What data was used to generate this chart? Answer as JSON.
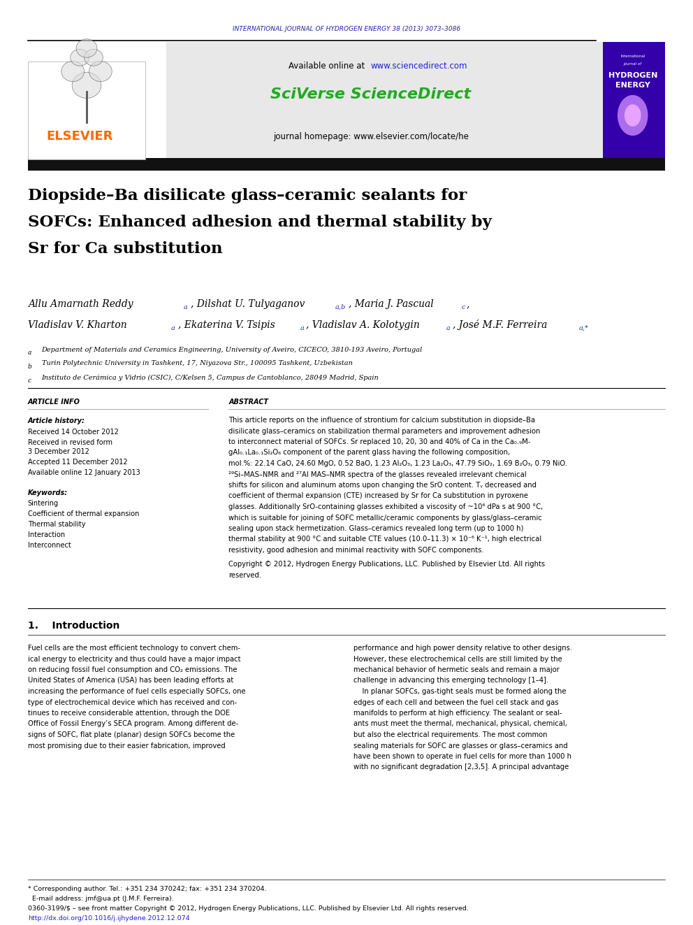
{
  "page_width": 9.92,
  "page_height": 13.23,
  "bg_color": "#ffffff",
  "journal_header": "INTERNATIONAL JOURNAL OF HYDROGEN ENERGY 38 (2013) 3073–3086",
  "journal_header_color": "#2222aa",
  "elsevier_logo_color": "#FF6600",
  "elsevier_text": "ELSEVIER",
  "sciverse_text": "SciVerse ScienceDirect",
  "sciverse_color": "#22aa22",
  "available_online": "Available online at ",
  "website": "www.sciencedirect.com",
  "website_color": "#2222cc",
  "journal_homepage": "journal homepage: www.elsevier.com/locate/he",
  "header_box_bg": "#e8e8e8",
  "title_bar_color": "#111111",
  "paper_title_line1": "Diopside–Ba disilicate glass–ceramic sealants for",
  "paper_title_line2": "SOFCs: Enhanced adhesion and thermal stability by",
  "paper_title_line3": "Sr for Ca substitution",
  "title_color": "#000000",
  "authors_line1": "Allu Amarnath Reddy ",
  "authors_line1b": "a",
  "authors_line1c": ", Dilshat U. Tulyaganov ",
  "authors_line1d": "a,b",
  "authors_line1e": ", Maria J. Pascual ",
  "authors_line1f": "c",
  "authors_line1g": ",",
  "authors_line2": "Vladislav V. Kharton ",
  "authors_line2b": "a",
  "authors_line2c": ", Ekaterina V. Tsipis ",
  "authors_line2d": "a",
  "authors_line2e": ", Vladislav A. Kolotygin ",
  "authors_line2f": "a",
  "authors_line2g": ", José M.F. Ferreira ",
  "authors_line2h": "a,*",
  "affil_a": "ᵃ Department of Materials and Ceramics Engineering, University of Aveiro, CICECO, 3810-193 Aveiro, Portugal",
  "affil_b": "ᵇ Turin Polytechnic University in Tashkent, 17, Niyazova Str., 100095 Tashkent, Uzbekistan",
  "affil_c": "ᶜ Instituto de Cerámica y Vidrio (CSIC), C/Kelsen 5, Campus de Cantoblanco, 28049 Madrid, Spain",
  "article_info_title": "ARTICLE INFO",
  "article_history_title": "Article history:",
  "received1": "Received 14 October 2012",
  "received2": "Received in revised form",
  "received2b": "3 December 2012",
  "accepted": "Accepted 11 December 2012",
  "available": "Available online 12 January 2013",
  "keywords_title": "Keywords:",
  "kw1": "Sintering",
  "kw2": "Coefficient of thermal expansion",
  "kw3": "Thermal stability",
  "kw4": "Interaction",
  "kw5": "Interconnect",
  "abstract_title": "ABSTRACT",
  "abstract_text": "This article reports on the influence of strontium for calcium substitution in diopside–Ba\ndisilicate glass–ceramics on stabilization thermal parameters and improvement adhesion\nto interconnect material of SOFCs. Sr replaced 10, 20, 30 and 40% of Ca in the Ca₀.₉M‐\ngAl₀.₁La₀.₁Si₂O₆ component of the parent glass having the following composition,\nmol.%: 22.14 CaO, 24.60 MgO, 0.52 BaO, 1.23 Al₂O₃, 1.23 La₂O₃, 47.79 SiO₂, 1.69 B₂O₃, 0.79 NiO.\n²⁹Si–MAS–NMR and ²⁷Al MAS–NMR spectra of the glasses revealed irrelevant chemical\nshifts for silicon and aluminum atoms upon changing the SrO content. Tᵧ decreased and\ncoefficient of thermal expansion (CTE) increased by Sr for Ca substitution in pyroxene\nglasses. Additionally SrO-containing glasses exhibited a viscosity of ~10⁶ dPa s at 900 °C,\nwhich is suitable for joining of SOFC metallic/ceramic components by glass/glass–ceramic\nsealing upon stack hermetization. Glass–ceramics revealed long term (up to 1000 h)\nthermal stability at 900 °C and suitable CTE values (10.0–11.3) × 10⁻⁶ K⁻¹, high electrical\nresistivity, good adhesion and minimal reactivity with SOFC components.",
  "copyright_text": "Copyright © 2012, Hydrogen Energy Publications, LLC. Published by Elsevier Ltd. All rights\nreserved.",
  "section1_title": "1.    Introduction",
  "intro_col1": "Fuel cells are the most efficient technology to convert chem-\nical energy to electricity and thus could have a major impact\non reducing fossil fuel consumption and CO₂ emissions. The\nUnited States of America (USA) has been leading efforts at\nincreasing the performance of fuel cells especially SOFCs, one\ntype of electrochemical device which has received and con-\ntinues to receive considerable attention, through the DOE\nOffice of Fossil Energy’s SECA program. Among different de-\nsigns of SOFC, flat plate (planar) design SOFCs become the\nmost promising due to their easier fabrication, improved",
  "intro_col2": "performance and high power density relative to other designs.\nHowever, these electrochemical cells are still limited by the\nmechanical behavior of hermetic seals and remain a major\nchallenge in advancing this emerging technology [1–4].\n    In planar SOFCs, gas-tight seals must be formed along the\nedges of each cell and between the fuel cell stack and gas\nmanifolds to perform at high efficiency. The sealant or seal-\nants must meet the thermal, mechanical, physical, chemical,\nbut also the electrical requirements. The most common\nsealing materials for SOFC are glasses or glass–ceramics and\nhave been shown to operate in fuel cells for more than 1000 h\nwith no significant degradation [2,3,5]. A principal advantage",
  "footnote1": "* Corresponding author. Tel.: +351 234 370242; fax: +351 234 370204.",
  "footnote2": "  E-mail address: jmf@ua.pt (J.M.F. Ferreira).",
  "footnote3": "0360-3199/$ – see front matter Copyright © 2012, Hydrogen Energy Publications, LLC. Published by Elsevier Ltd. All rights reserved.",
  "footnote4": "http://dx.doi.org/10.1016/j.ijhydene.2012.12.074",
  "footnote4_color": "#2222cc"
}
